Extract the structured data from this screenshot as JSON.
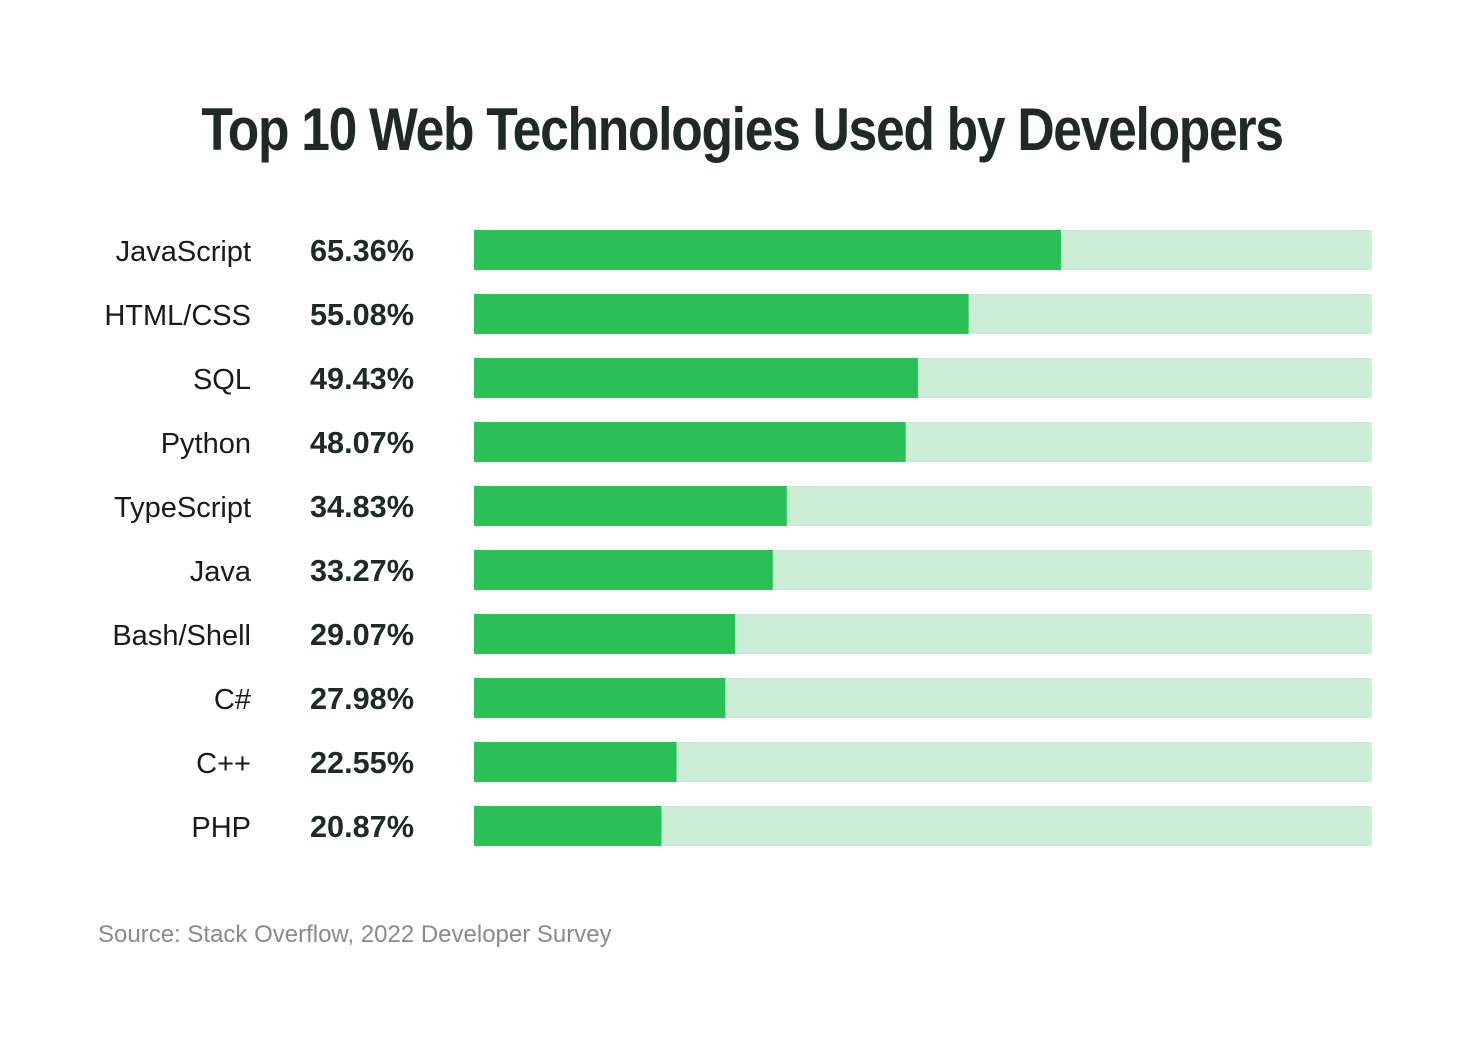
{
  "chart_data": {
    "type": "bar",
    "orientation": "horizontal",
    "title": "Top 10 Web Technologies Used by Developers",
    "categories": [
      "JavaScript",
      "HTML/CSS",
      "SQL",
      "Python",
      "TypeScript",
      "Java",
      "Bash/Shell",
      "C#",
      "C++",
      "PHP"
    ],
    "values": [
      65.36,
      55.08,
      49.43,
      48.07,
      34.83,
      33.27,
      29.07,
      27.98,
      22.55,
      20.87
    ],
    "value_labels": [
      "65.36%",
      "55.08%",
      "49.43%",
      "48.07%",
      "34.83%",
      "33.27%",
      "29.07%",
      "27.98%",
      "22.55%",
      "20.87%"
    ],
    "xlim": [
      0,
      100
    ],
    "grid": false,
    "colors": {
      "bar": "#2bbf58",
      "track": "#cbedd5"
    }
  },
  "source": "Source: Stack Overflow, 2022 Developer Survey"
}
